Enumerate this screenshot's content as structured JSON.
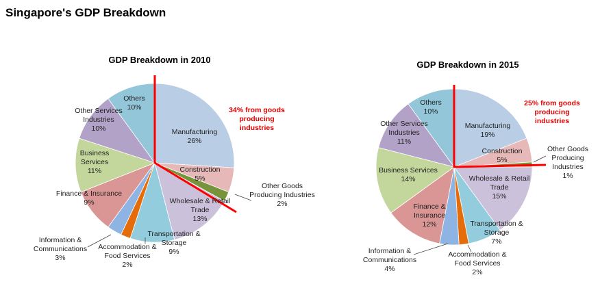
{
  "page_title": "Singapore's GDP Breakdown",
  "chart_data": [
    {
      "type": "pie",
      "title": "GDP Breakdown in 2010",
      "annotation": [
        "34% from goods",
        "producing",
        "industries"
      ],
      "slices": [
        {
          "name": "Manufacturing",
          "value": 26,
          "label": [
            "Manufacturing",
            "26%"
          ],
          "color": "#b9cde5"
        },
        {
          "name": "Construction",
          "value": 5,
          "label": [
            "Construction",
            "5%"
          ],
          "color": "#e6b9b8"
        },
        {
          "name": "Other Goods Producing Industries",
          "value": 2,
          "label": [
            "Other Goods",
            "Producing Industries",
            "2%"
          ],
          "color": "#77933c"
        },
        {
          "name": "Wholesale & Retail Trade",
          "value": 13,
          "label": [
            "Wholesale & Retail",
            "Trade",
            "13%"
          ],
          "color": "#ccc1da"
        },
        {
          "name": "Transportation & Storage",
          "value": 9,
          "label": [
            "Transportation &",
            "Storage",
            "9%"
          ],
          "color": "#93cddd"
        },
        {
          "name": "Accommodation & Food Services",
          "value": 2,
          "label": [
            "Accommodation &",
            "Food Services",
            "2%"
          ],
          "color": "#e46c0a"
        },
        {
          "name": "Information & Communications",
          "value": 3,
          "label": [
            "Information &",
            "Communications",
            "3%"
          ],
          "color": "#8eb4e3"
        },
        {
          "name": "Finance & Insurance",
          "value": 9,
          "label": [
            "Finance & Insurance",
            "9%"
          ],
          "color": "#d99694"
        },
        {
          "name": "Business Services",
          "value": 11,
          "label": [
            "Business",
            "Services",
            "11%"
          ],
          "color": "#c3d69b"
        },
        {
          "name": "Other Services Industries",
          "value": 10,
          "label": [
            "Other Services",
            "Industries",
            "10%"
          ],
          "color": "#b3a2c7"
        },
        {
          "name": "Others",
          "value": 10,
          "label": [
            "Others",
            "10%"
          ],
          "color": "#92c6d8"
        }
      ]
    },
    {
      "type": "pie",
      "title": "GDP Breakdown in 2015",
      "annotation": [
        "25% from goods",
        "producing",
        "industries"
      ],
      "slices": [
        {
          "name": "Manufacturing",
          "value": 19,
          "label": [
            "Manufacturing",
            "19%"
          ],
          "color": "#b9cde5"
        },
        {
          "name": "Construction",
          "value": 5,
          "label": [
            "Construction",
            "5%"
          ],
          "color": "#e6b9b8"
        },
        {
          "name": "Other Goods Producing Industries",
          "value": 1,
          "label": [
            "Other Goods",
            "Producing",
            "Industries",
            "1%"
          ],
          "color": "#77933c"
        },
        {
          "name": "Wholesale & Retail Trade",
          "value": 15,
          "label": [
            "Wholesale & Retail",
            "Trade",
            "15%"
          ],
          "color": "#ccc1da"
        },
        {
          "name": "Transportation & Storage",
          "value": 7,
          "label": [
            "Transportation &",
            "Storage",
            "7%"
          ],
          "color": "#93cddd"
        },
        {
          "name": "Accommodation & Food Services",
          "value": 2,
          "label": [
            "Accommodation &",
            "Food Services",
            "2%"
          ],
          "color": "#e46c0a"
        },
        {
          "name": "Information & Communications",
          "value": 4,
          "label": [
            "Information &",
            "Communications",
            "4%"
          ],
          "color": "#8eb4e3"
        },
        {
          "name": "Finance & Insurance",
          "value": 12,
          "label": [
            "Finance &",
            "Insurance",
            "12%"
          ],
          "color": "#d99694"
        },
        {
          "name": "Business Services",
          "value": 14,
          "label": [
            "Business Services",
            "14%"
          ],
          "color": "#c3d69b"
        },
        {
          "name": "Other Services Industries",
          "value": 11,
          "label": [
            "Other Services",
            "Industries",
            "11%"
          ],
          "color": "#b3a2c7"
        },
        {
          "name": "Others",
          "value": 10,
          "label": [
            "Others",
            "10%"
          ],
          "color": "#92c6d8"
        }
      ]
    }
  ]
}
